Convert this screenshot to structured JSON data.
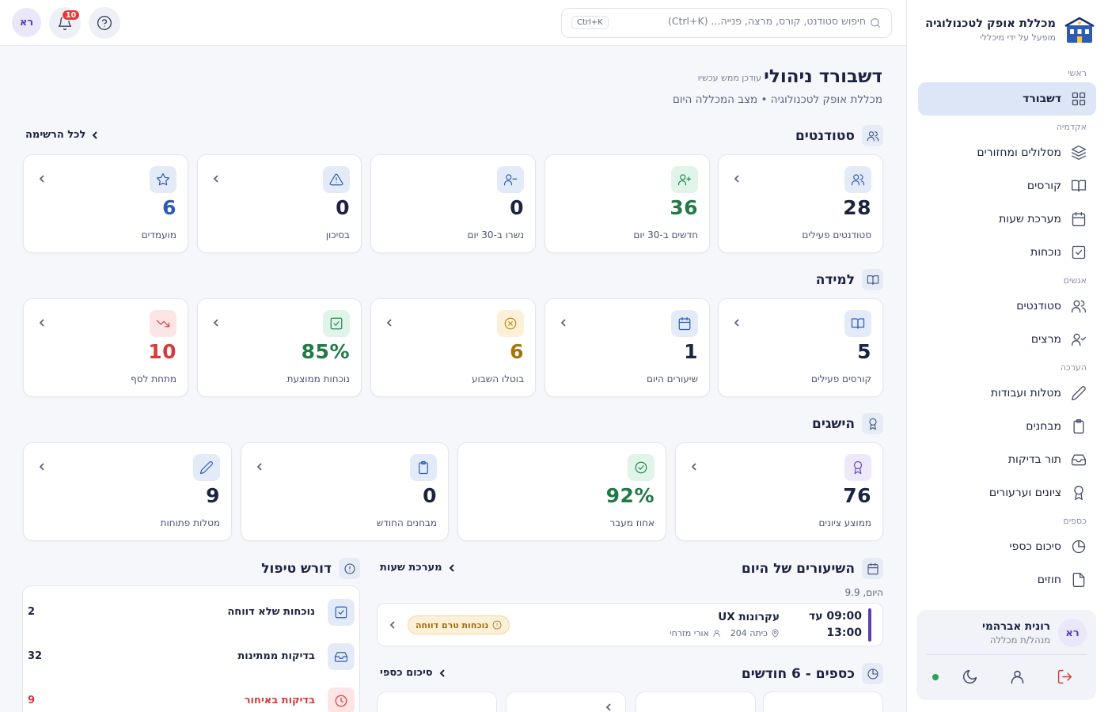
{
  "topbar": {
    "search_placeholder": "חיפוש סטודנט, קורס, מרצה, פנייה... (Ctrl+K)",
    "shortcut": "Ctrl+K",
    "notifications_count": "10",
    "avatar_initials": "רא"
  },
  "sidebar": {
    "brand_title": "מכללת אופק לטכנולוגיה",
    "brand_sub": "מופעל על ידי מיכללי",
    "sections": [
      {
        "label": "ראשי",
        "items": [
          {
            "label": "דשבורד",
            "icon": "grid-icon",
            "active": true
          }
        ]
      },
      {
        "label": "אקדמיה",
        "items": [
          {
            "label": "מסלולים ומחזורים",
            "icon": "layers-icon"
          },
          {
            "label": "קורסים",
            "icon": "book-icon"
          },
          {
            "label": "מערכת שעות",
            "icon": "calendar-icon"
          },
          {
            "label": "נוכחות",
            "icon": "checkbox-icon"
          }
        ]
      },
      {
        "label": "אנשים",
        "items": [
          {
            "label": "סטודנטים",
            "icon": "users-icon"
          },
          {
            "label": "מרצים",
            "icon": "user-check-icon"
          }
        ]
      },
      {
        "label": "הערכה",
        "items": [
          {
            "label": "מטלות ועבודות",
            "icon": "pencil-icon"
          },
          {
            "label": "מבחנים",
            "icon": "clipboard-icon"
          },
          {
            "label": "תור בדיקות",
            "icon": "inbox-icon"
          },
          {
            "label": "ציונים וערעורים",
            "icon": "award-icon"
          }
        ]
      },
      {
        "label": "כספים",
        "items": [
          {
            "label": "סיכום כספי",
            "icon": "pie-icon"
          },
          {
            "label": "חוזים",
            "icon": "file-icon"
          }
        ]
      }
    ],
    "user": {
      "initials": "רא",
      "name": "רונית אברהמי",
      "role": "מנהל/ת מכללה"
    }
  },
  "header": {
    "title": "דשבורד ניהולי",
    "updated": "עודכן ממש עכשיו",
    "subtitle": "מכללת אופק לטכנולוגיה • מצב המכללה היום"
  },
  "students": {
    "title": "סטודנטים",
    "link": "לכל הרשימה",
    "cards": [
      {
        "value": "28",
        "label": "סטודנטים פעילים",
        "icon": "users-icon",
        "color": "blue"
      },
      {
        "value": "36",
        "label": "חדשים ב-30 יום",
        "icon": "user-plus-icon",
        "color": "green"
      },
      {
        "value": "0",
        "label": "נשרו ב-30 יום",
        "icon": "user-minus-icon",
        "color": "blue"
      },
      {
        "value": "0",
        "label": "בסיכון",
        "icon": "alert-icon",
        "color": "blue"
      },
      {
        "value": "6",
        "label": "מועמדים",
        "icon": "star-icon",
        "color": "blue"
      }
    ]
  },
  "learning": {
    "title": "למידה",
    "cards": [
      {
        "value": "5",
        "label": "קורסים פעילים",
        "icon": "book-icon",
        "color": "blue"
      },
      {
        "value": "1",
        "label": "שיעורים היום",
        "icon": "calendar-icon",
        "color": "blue"
      },
      {
        "value": "6",
        "label": "בוטלו השבוע",
        "icon": "x-circle-icon",
        "color": "amber"
      },
      {
        "value": "85%",
        "label": "נוכחות ממוצעת",
        "icon": "checkbox-icon",
        "color": "green"
      },
      {
        "value": "10",
        "label": "מתחת לסף",
        "icon": "trend-down-icon",
        "color": "red"
      }
    ]
  },
  "achievements": {
    "title": "הישגים",
    "cards": [
      {
        "value": "76",
        "label": "ממוצע ציונים",
        "icon": "award-icon",
        "color": "purple"
      },
      {
        "value": "92%",
        "label": "אחוז מעבר",
        "icon": "check-circle-icon",
        "color": "green"
      },
      {
        "value": "0",
        "label": "מבחנים החודש",
        "icon": "clipboard-icon",
        "color": "blue"
      },
      {
        "value": "9",
        "label": "מטלות פתוחות",
        "icon": "pencil-icon",
        "color": "blue"
      }
    ]
  },
  "today": {
    "title": "השיעורים של היום",
    "link": "מערכת שעות",
    "day": "היום, 9.9",
    "lesson": {
      "time_from": "09:00 עד",
      "time_to": "13:00",
      "name": "עקרונות UX",
      "room": "כיתה 204",
      "teacher": "אורי מזרחי",
      "status": "נוכחות טרם דווחה"
    }
  },
  "finance": {
    "title": "כספים - 6 חודשים",
    "link": "סיכום כספי"
  },
  "attention": {
    "title": "דורש טיפול",
    "items": [
      {
        "label": "נוכחות שלא דווחה",
        "value": "2",
        "icon": "checkbox-icon",
        "color": "blue"
      },
      {
        "label": "בדיקות ממתינות",
        "value": "32",
        "icon": "inbox-icon",
        "color": "blue"
      },
      {
        "label": "בדיקות באיחור",
        "value": "9",
        "icon": "clock-icon",
        "color": "red"
      }
    ]
  },
  "colors": {
    "blue": "#2d5bb8",
    "green": "#1f8a4c",
    "amber": "#b07a0f",
    "red": "#d63b3b",
    "purple": "#6b45c6",
    "navy": "#1c2340"
  }
}
